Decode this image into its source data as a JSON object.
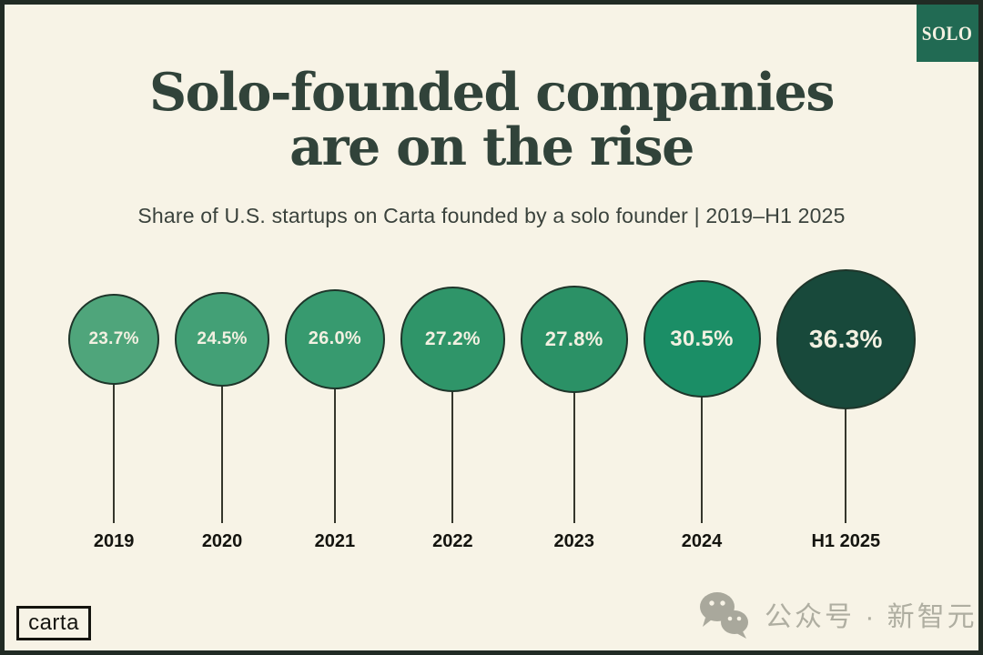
{
  "badge": {
    "label": "SOLO"
  },
  "title": {
    "line1": "Solo-founded companies",
    "line2": "are on the rise"
  },
  "subtitle": "Share of U.S. startups on Carta founded by a solo founder | 2019–H1 2025",
  "chart_data": {
    "type": "bubble",
    "style": "lollipop",
    "title": "Solo-founded companies are on the rise",
    "subtitle": "Share of U.S. startups on Carta founded by a solo founder | 2019–H1 2025",
    "categories": [
      "2019",
      "2020",
      "2021",
      "2022",
      "2023",
      "2024",
      "H1 2025"
    ],
    "values": [
      23.7,
      24.5,
      26.0,
      27.2,
      27.8,
      30.5,
      36.3
    ],
    "labels": [
      "23.7%",
      "24.5%",
      "26.0%",
      "27.2%",
      "27.8%",
      "30.5%",
      "36.3%"
    ],
    "unit": "%",
    "colors": [
      "#4FA57B",
      "#43A076",
      "#379A6F",
      "#2F9569",
      "#2B9166",
      "#1B8E66",
      "#18493B"
    ],
    "layout_hints": {
      "bubble_size": "radius proportional to value",
      "stems": "vertical line from each bubble down to year label axis",
      "label_position": "value inside bubble, category below stem"
    }
  },
  "footer": {
    "logo_label": "carta",
    "watermark_text": "公众号 · 新智元",
    "watermark_icon": "wechat-icon"
  },
  "theme": {
    "background": "#F7F3E6",
    "frame_border": "#212B24",
    "badge_bg": "#216A53",
    "title_color": "#31433A",
    "bubble_text": "#F2F0E1",
    "axis_text": "#14140F",
    "watermark_color": "#AFAEA1"
  }
}
